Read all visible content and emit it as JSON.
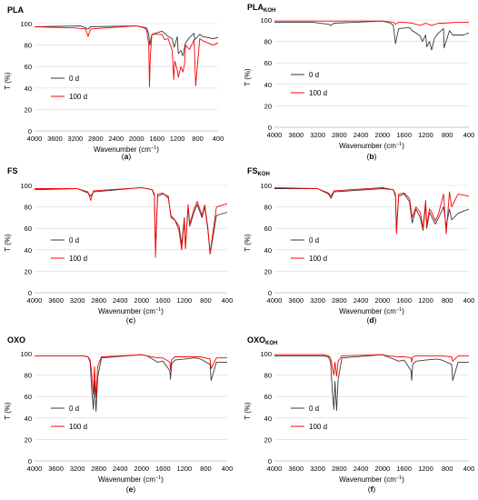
{
  "figure": {
    "x_label_text": "Wavenumber (cm",
    "x_label_exp": "−1",
    "x_label_close": ")",
    "y_label": "T (%)"
  },
  "colors": {
    "series_0d": "#3a3a3a",
    "series_100d": "#ff0000"
  },
  "chart_data": [
    {
      "type": "line",
      "letter": "(a)",
      "title": "PLA",
      "title_sub": "",
      "xlim": [
        4000,
        400
      ],
      "x_reversed": true,
      "x_ticks": [
        4000,
        3600,
        3200,
        2800,
        2400,
        2000,
        1600,
        1200,
        800,
        400
      ],
      "ylim": [
        0,
        100
      ],
      "y_ticks": [
        0,
        20,
        40,
        60,
        80,
        100
      ],
      "xlabel": "Wavenumber (cm−1)",
      "ylabel": "T (%)",
      "legend": "lower-left",
      "series": [
        {
          "name": "0 d",
          "color": "#3a3a3a",
          "x": [
            4000,
            3100,
            3000,
            2950,
            2900,
            2000,
            1800,
            1760,
            1740,
            1700,
            1500,
            1450,
            1380,
            1300,
            1260,
            1200,
            1180,
            1130,
            1090,
            1040,
            960,
            870,
            860,
            760,
            700,
            500,
            400
          ],
          "y": [
            97,
            98,
            96,
            95,
            97,
            98,
            96,
            90,
            80,
            90,
            93,
            91,
            88,
            86,
            78,
            88,
            72,
            75,
            70,
            82,
            87,
            91,
            85,
            90,
            88,
            86,
            87
          ]
        },
        {
          "name": "100 d",
          "color": "#ff0000",
          "x": [
            4000,
            3200,
            3000,
            2950,
            2900,
            2000,
            1850,
            1800,
            1760,
            1745,
            1730,
            1700,
            1500,
            1450,
            1380,
            1300,
            1270,
            1250,
            1200,
            1180,
            1130,
            1090,
            1060,
            1040,
            960,
            870,
            840,
            760,
            700,
            500,
            400
          ],
          "y": [
            97,
            96,
            95,
            88,
            95,
            98,
            96,
            94,
            80,
            41,
            70,
            90,
            90,
            85,
            86,
            75,
            48,
            65,
            57,
            50,
            60,
            55,
            62,
            80,
            76,
            85,
            42,
            86,
            84,
            80,
            82
          ]
        }
      ]
    },
    {
      "type": "line",
      "letter": "(b)",
      "title": "PLA",
      "title_sub": "KOH",
      "xlim": [
        4000,
        400
      ],
      "x_reversed": true,
      "x_ticks": [
        4000,
        3600,
        3200,
        2800,
        2400,
        2000,
        1600,
        1200,
        800,
        400
      ],
      "ylim": [
        0,
        100
      ],
      "y_ticks": [
        0,
        20,
        40,
        60,
        80,
        100
      ],
      "xlabel": "Wavenumber (cm−1)",
      "ylabel": "T (%)",
      "legend": "lower-left",
      "series": [
        {
          "name": "0 d",
          "color": "#3a3a3a",
          "x": [
            4000,
            3300,
            3000,
            2950,
            2900,
            2000,
            1850,
            1800,
            1760,
            1700,
            1500,
            1450,
            1380,
            1300,
            1260,
            1200,
            1180,
            1130,
            1090,
            1040,
            960,
            870,
            860,
            760,
            700,
            500,
            400
          ],
          "y": [
            98,
            98,
            96,
            95,
            97,
            99,
            97,
            95,
            78,
            92,
            93,
            90,
            88,
            85,
            80,
            86,
            75,
            80,
            72,
            83,
            88,
            92,
            74,
            90,
            86,
            86,
            88
          ]
        },
        {
          "name": "100 d",
          "color": "#ff0000",
          "x": [
            4000,
            2000,
            1800,
            1760,
            1700,
            1600,
            1450,
            1380,
            1300,
            1200,
            1090,
            960,
            870,
            600,
            400
          ],
          "y": [
            99,
            99,
            98,
            96,
            98,
            98,
            97,
            96,
            95,
            97,
            95,
            97,
            97,
            98,
            98
          ]
        }
      ]
    },
    {
      "type": "line",
      "letter": "(c)",
      "title": "FS",
      "title_sub": "",
      "xlim": [
        4000,
        400
      ],
      "x_reversed": true,
      "x_ticks": [
        4000,
        3600,
        3200,
        2800,
        2400,
        2000,
        1600,
        1200,
        800,
        400
      ],
      "ylim": [
        0,
        100
      ],
      "y_ticks": [
        0,
        20,
        40,
        60,
        80,
        100
      ],
      "xlabel": "Wavenumber (cm−1)",
      "ylabel": "T (%)",
      "legend": "lower-left",
      "series": [
        {
          "name": "0 d",
          "color": "#3a3a3a",
          "x": [
            4000,
            3200,
            3000,
            2950,
            2900,
            2000,
            1800,
            1760,
            1740,
            1700,
            1600,
            1500,
            1450,
            1380,
            1300,
            1250,
            1200,
            1180,
            1130,
            1100,
            1020,
            960,
            870,
            820,
            760,
            720,
            600,
            400
          ],
          "y": [
            96,
            97,
            93,
            90,
            94,
            98,
            96,
            90,
            40,
            90,
            92,
            90,
            70,
            68,
            62,
            45,
            70,
            42,
            80,
            62,
            75,
            82,
            70,
            80,
            58,
            36,
            72,
            75
          ]
        },
        {
          "name": "100 d",
          "color": "#ff0000",
          "x": [
            4000,
            3200,
            3000,
            2950,
            2900,
            2000,
            1800,
            1760,
            1740,
            1700,
            1600,
            1500,
            1450,
            1380,
            1300,
            1250,
            1200,
            1180,
            1130,
            1100,
            1020,
            960,
            870,
            820,
            760,
            720,
            600,
            400
          ],
          "y": [
            97,
            97,
            94,
            86,
            95,
            98,
            96,
            92,
            33,
            92,
            93,
            88,
            72,
            68,
            58,
            40,
            68,
            41,
            82,
            64,
            78,
            85,
            72,
            82,
            60,
            37,
            80,
            83
          ]
        }
      ]
    },
    {
      "type": "line",
      "letter": "(d)",
      "title": "FS",
      "title_sub": "KOH",
      "xlim": [
        4000,
        400
      ],
      "x_reversed": true,
      "x_ticks": [
        4000,
        3600,
        3200,
        2800,
        2400,
        2000,
        1600,
        1200,
        800,
        400
      ],
      "ylim": [
        0,
        100
      ],
      "y_ticks": [
        0,
        20,
        40,
        60,
        80,
        100
      ],
      "xlabel": "Wavenumber (cm−1)",
      "ylabel": "T (%)",
      "legend": "lower-left",
      "series": [
        {
          "name": "0 d",
          "color": "#3a3a3a",
          "x": [
            4000,
            3200,
            3000,
            2950,
            2900,
            2000,
            1800,
            1760,
            1740,
            1700,
            1600,
            1500,
            1450,
            1380,
            1300,
            1250,
            1200,
            1180,
            1130,
            1100,
            1020,
            960,
            870,
            820,
            760,
            720,
            600,
            400
          ],
          "y": [
            97,
            97,
            92,
            88,
            94,
            97,
            96,
            90,
            57,
            90,
            92,
            85,
            65,
            78,
            70,
            58,
            82,
            60,
            75,
            72,
            64,
            70,
            80,
            62,
            78,
            68,
            74,
            78
          ]
        },
        {
          "name": "100 d",
          "color": "#ff0000",
          "x": [
            4000,
            3200,
            3000,
            2950,
            2900,
            2000,
            1800,
            1760,
            1740,
            1700,
            1600,
            1500,
            1450,
            1380,
            1300,
            1250,
            1200,
            1180,
            1130,
            1100,
            1020,
            960,
            870,
            820,
            760,
            720,
            600,
            400
          ],
          "y": [
            98,
            97,
            93,
            90,
            95,
            98,
            96,
            92,
            55,
            92,
            93,
            88,
            70,
            80,
            75,
            60,
            86,
            63,
            78,
            76,
            67,
            74,
            92,
            55,
            94,
            80,
            92,
            90
          ]
        }
      ]
    },
    {
      "type": "line",
      "letter": "(e)",
      "title": "OXO",
      "title_sub": "",
      "xlim": [
        4000,
        400
      ],
      "x_reversed": true,
      "x_ticks": [
        4000,
        3600,
        3200,
        2800,
        2400,
        2000,
        1600,
        1200,
        800,
        400
      ],
      "ylim": [
        0,
        100
      ],
      "y_ticks": [
        0,
        20,
        40,
        60,
        80,
        100
      ],
      "xlabel": "Wavenumber (cm−1)",
      "ylabel": "T (%)",
      "legend": "lower-left",
      "series": [
        {
          "name": "0 d",
          "color": "#3a3a3a",
          "x": [
            4000,
            3100,
            3000,
            2960,
            2930,
            2900,
            2880,
            2850,
            2820,
            2750,
            2000,
            1900,
            1700,
            1600,
            1470,
            1460,
            1440,
            1380,
            1200,
            1000,
            900,
            720,
            700,
            600,
            400
          ],
          "y": [
            98,
            98,
            97,
            92,
            65,
            48,
            75,
            46,
            78,
            96,
            99,
            98,
            92,
            93,
            84,
            76,
            90,
            94,
            95,
            96,
            95,
            90,
            75,
            92,
            92
          ]
        },
        {
          "name": "100 d",
          "color": "#ff0000",
          "x": [
            4000,
            3100,
            3000,
            2960,
            2930,
            2900,
            2880,
            2850,
            2820,
            2750,
            2000,
            1900,
            1700,
            1600,
            1470,
            1460,
            1440,
            1380,
            1200,
            1000,
            900,
            720,
            700,
            600,
            400
          ],
          "y": [
            98,
            98,
            97,
            94,
            80,
            62,
            88,
            60,
            88,
            97,
            99,
            98,
            96,
            96,
            92,
            85,
            94,
            97,
            97,
            97,
            97,
            95,
            86,
            96,
            96
          ]
        }
      ]
    },
    {
      "type": "line",
      "letter": "(f)",
      "title": "OXO",
      "title_sub": "KOH",
      "xlim": [
        4000,
        400
      ],
      "x_reversed": true,
      "x_ticks": [
        4000,
        3600,
        3200,
        2800,
        2400,
        2000,
        1600,
        1200,
        800,
        400
      ],
      "ylim": [
        0,
        100
      ],
      "y_ticks": [
        0,
        20,
        40,
        60,
        80,
        100
      ],
      "xlabel": "Wavenumber (cm−1)",
      "ylabel": "T (%)",
      "legend": "lower-left",
      "series": [
        {
          "name": "0 d",
          "color": "#3a3a3a",
          "x": [
            4000,
            3100,
            3000,
            2960,
            2930,
            2900,
            2880,
            2850,
            2820,
            2750,
            2000,
            1900,
            1700,
            1600,
            1470,
            1460,
            1440,
            1380,
            1200,
            1000,
            900,
            720,
            700,
            600,
            400
          ],
          "y": [
            98,
            98,
            97,
            92,
            66,
            48,
            74,
            47,
            76,
            96,
            99,
            97,
            93,
            94,
            84,
            75,
            90,
            93,
            94,
            95,
            94,
            90,
            75,
            92,
            92
          ]
        },
        {
          "name": "100 d",
          "color": "#ff0000",
          "x": [
            4000,
            3100,
            3000,
            2960,
            2930,
            2900,
            2880,
            2850,
            2820,
            2750,
            2000,
            1900,
            1700,
            1600,
            1470,
            1460,
            1440,
            1380,
            1200,
            1000,
            900,
            720,
            700,
            600,
            400
          ],
          "y": [
            99,
            99,
            98,
            96,
            88,
            80,
            92,
            79,
            93,
            98,
            99,
            98,
            97,
            97,
            96,
            92,
            97,
            98,
            98,
            98,
            98,
            97,
            93,
            98,
            98
          ]
        }
      ]
    }
  ]
}
